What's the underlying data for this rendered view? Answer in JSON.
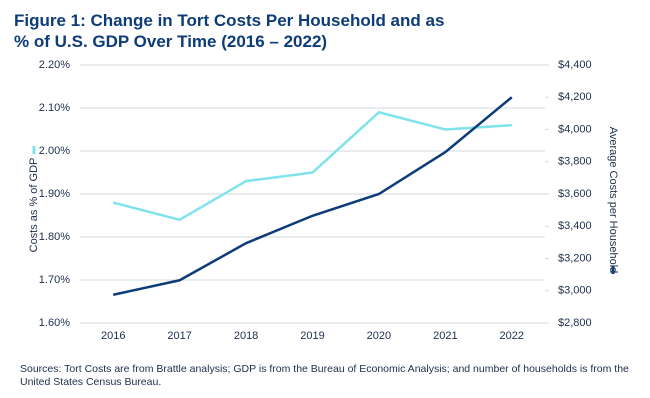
{
  "chart_data": {
    "type": "line",
    "title": "Figure 1: Change in Tort Costs Per Household and as % of U.S. GDP Over Time (2016 – 2022)",
    "note": "Sources: Tort Costs are from Brattle analysis; GDP is from the Bureau of Economic Analysis; and number of households is from the United States Census Bureau.",
    "categories": [
      "2016",
      "2017",
      "2018",
      "2019",
      "2020",
      "2021",
      "2022"
    ],
    "series": [
      {
        "name": "Costs as % of GDP",
        "color": "#7fe3ec",
        "values": [
          1.88,
          1.84,
          1.93,
          1.95,
          2.09,
          2.05,
          2.06
        ]
      },
      {
        "name": "Average Costs per Household",
        "color": "#0d3c78",
        "axis": "y2",
        "values": [
          2975,
          3065,
          3295,
          3465,
          3600,
          3860,
          4200
        ]
      }
    ],
    "ylim": [
      1.6,
      2.2
    ],
    "yticks": [
      {
        "value": 1.6,
        "label": "1.60%"
      },
      {
        "value": 1.7,
        "label": "1.70%"
      },
      {
        "value": 1.8,
        "label": "1.80%"
      },
      {
        "value": 1.9,
        "label": "1.90%"
      },
      {
        "value": 2.0,
        "label": "2.00%"
      },
      {
        "value": 2.1,
        "label": "2.10%"
      },
      {
        "value": 2.2,
        "label": "2.20%"
      }
    ],
    "y2lim": [
      2800,
      4400
    ],
    "y2ticks": [
      {
        "value": 2800,
        "label": "$2,800"
      },
      {
        "value": 3000,
        "label": "$3,000"
      },
      {
        "value": 3200,
        "label": "$3,200"
      },
      {
        "value": 3400,
        "label": "$3,400"
      },
      {
        "value": 3600,
        "label": "$3,600"
      },
      {
        "value": 3800,
        "label": "$3,800"
      },
      {
        "value": 4000,
        "label": "$4,000"
      },
      {
        "value": 4200,
        "label": "$4,200"
      },
      {
        "value": 4400,
        "label": "$4,400"
      }
    ],
    "grid": true
  }
}
